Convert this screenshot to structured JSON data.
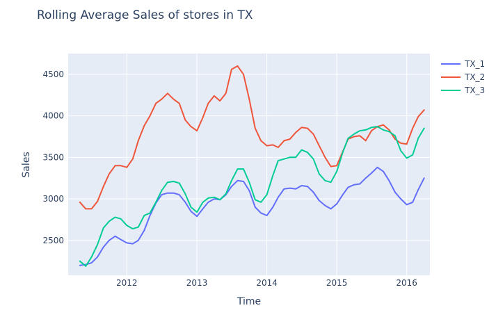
{
  "chart_data": {
    "type": "line",
    "title": "Rolling Average Sales of stores in TX",
    "xlabel": "Time",
    "ylabel": "Sales",
    "x_ticks": [
      "2012",
      "2013",
      "2014",
      "2015",
      "2016"
    ],
    "y_ticks": [
      2500,
      3000,
      3500,
      4000,
      4500
    ],
    "xlim": [
      "2011-03-01",
      "2016-05-01"
    ],
    "ylim": [
      2080,
      4750
    ],
    "grid": true,
    "legend_position": "top-right",
    "plot_bgcolor": "#e5ecf6",
    "x": [
      "2011-05-01",
      "2011-06-01",
      "2011-07-01",
      "2011-08-01",
      "2011-09-01",
      "2011-10-01",
      "2011-11-01",
      "2011-12-01",
      "2012-01-01",
      "2012-02-01",
      "2012-03-01",
      "2012-04-01",
      "2012-05-01",
      "2012-06-01",
      "2012-07-01",
      "2012-08-01",
      "2012-09-01",
      "2012-10-01",
      "2012-11-01",
      "2012-12-01",
      "2013-01-01",
      "2013-02-01",
      "2013-03-01",
      "2013-04-01",
      "2013-05-01",
      "2013-06-01",
      "2013-07-01",
      "2013-08-01",
      "2013-09-01",
      "2013-10-01",
      "2013-11-01",
      "2013-12-01",
      "2014-01-01",
      "2014-02-01",
      "2014-03-01",
      "2014-04-01",
      "2014-05-01",
      "2014-06-01",
      "2014-07-01",
      "2014-08-01",
      "2014-09-01",
      "2014-10-01",
      "2014-11-01",
      "2014-12-01",
      "2015-01-01",
      "2015-02-01",
      "2015-03-01",
      "2015-04-01",
      "2015-05-01",
      "2015-06-01",
      "2015-07-01",
      "2015-08-01",
      "2015-09-01",
      "2015-10-01",
      "2015-11-01",
      "2015-12-01",
      "2016-01-01",
      "2016-02-01",
      "2016-03-01",
      "2016-04-01"
    ],
    "series": [
      {
        "name": "TX_1",
        "color": "#636efa",
        "values": [
          2200,
          2210,
          2230,
          2300,
          2420,
          2500,
          2550,
          2510,
          2470,
          2460,
          2500,
          2620,
          2800,
          2950,
          3050,
          3070,
          3070,
          3050,
          2960,
          2850,
          2790,
          2880,
          2960,
          3000,
          2990,
          3050,
          3150,
          3220,
          3210,
          3100,
          2900,
          2830,
          2800,
          2900,
          3020,
          3120,
          3130,
          3120,
          3160,
          3150,
          3080,
          2980,
          2920,
          2880,
          2940,
          3050,
          3140,
          3170,
          3180,
          3250,
          3310,
          3380,
          3330,
          3220,
          3080,
          3000,
          2930,
          2960,
          3110,
          3250
        ]
      },
      {
        "name": "TX_2",
        "color": "#ef553b",
        "values": [
          2960,
          2880,
          2880,
          2970,
          3150,
          3300,
          3400,
          3400,
          3380,
          3480,
          3700,
          3880,
          4000,
          4150,
          4200,
          4270,
          4200,
          4150,
          3950,
          3870,
          3820,
          3980,
          4150,
          4240,
          4180,
          4270,
          4560,
          4600,
          4500,
          4200,
          3850,
          3700,
          3640,
          3650,
          3620,
          3700,
          3720,
          3800,
          3860,
          3850,
          3780,
          3640,
          3500,
          3390,
          3400,
          3570,
          3720,
          3750,
          3760,
          3700,
          3820,
          3870,
          3890,
          3830,
          3720,
          3670,
          3660,
          3850,
          3990,
          4070
        ]
      },
      {
        "name": "TX_3",
        "color": "#00cc96",
        "values": [
          2250,
          2190,
          2300,
          2450,
          2650,
          2730,
          2780,
          2760,
          2680,
          2640,
          2660,
          2800,
          2830,
          2960,
          3100,
          3200,
          3210,
          3190,
          3060,
          2900,
          2840,
          2960,
          3010,
          3020,
          2990,
          3060,
          3220,
          3360,
          3360,
          3200,
          2990,
          2960,
          3050,
          3280,
          3460,
          3480,
          3500,
          3500,
          3590,
          3560,
          3480,
          3300,
          3220,
          3200,
          3330,
          3560,
          3730,
          3780,
          3820,
          3830,
          3860,
          3870,
          3830,
          3810,
          3760,
          3580,
          3490,
          3530,
          3730,
          3850
        ]
      }
    ]
  }
}
